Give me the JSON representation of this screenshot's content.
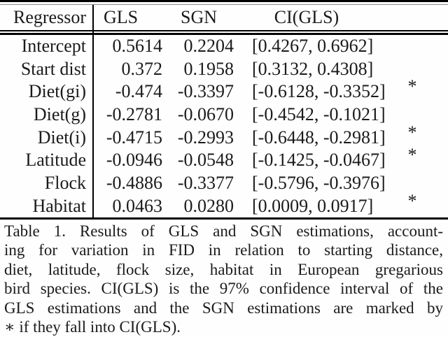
{
  "page": {
    "background": "#fefefe",
    "ink": "#1b1b1b"
  },
  "table": {
    "title": "Table 1",
    "columns": [
      "Regressor",
      "GLS",
      "SGN",
      "CI(GLS)",
      ""
    ],
    "rows": [
      {
        "regressor": "Intercept",
        "gls": "0.5614",
        "sgn": "0.2204",
        "ci": "[0.4267, 0.6962]",
        "star": ""
      },
      {
        "regressor": "Start dist",
        "gls": "0.372",
        "sgn": "0.1958",
        "ci": "[0.3132, 0.4308]",
        "star": ""
      },
      {
        "regressor": "Diet(gi)",
        "gls": "-0.474",
        "sgn": "-0.3397",
        "ci": "[-0.6128, -0.3352]",
        "star": "*"
      },
      {
        "regressor": "Diet(g)",
        "gls": "-0.2781",
        "sgn": "-0.0670",
        "ci": "[-0.4542, -0.1021]",
        "star": ""
      },
      {
        "regressor": "Diet(i)",
        "gls": "-0.4715",
        "sgn": "-0.2993",
        "ci": "[-0.6448, -0.2981]",
        "star": "*"
      },
      {
        "regressor": "Latitude",
        "gls": "-0.0946",
        "sgn": "-0.0548",
        "ci": "[-0.1425, -0.0467]",
        "star": "*"
      },
      {
        "regressor": "Flock",
        "gls": "-0.4886",
        "sgn": "-0.3377",
        "ci": "[-0.5796, -0.3976]",
        "star": ""
      },
      {
        "regressor": "Habitat",
        "gls": "0.0463",
        "sgn": "0.0280",
        "ci": "[0.0009, 0.0917]",
        "star": "*"
      }
    ]
  },
  "caption": {
    "lines": [
      "Table 1.  Results of GLS and SGN estimations, account-",
      "ing for variation in FID in relation to starting distance,",
      "diet, latitude, flock size, habitat in European gregarious",
      "bird species. CI(GLS) is the 97% confidence interval of the",
      "GLS estimations and the SGN estimations are marked by",
      "∗ if they fall into CI(GLS)."
    ]
  }
}
